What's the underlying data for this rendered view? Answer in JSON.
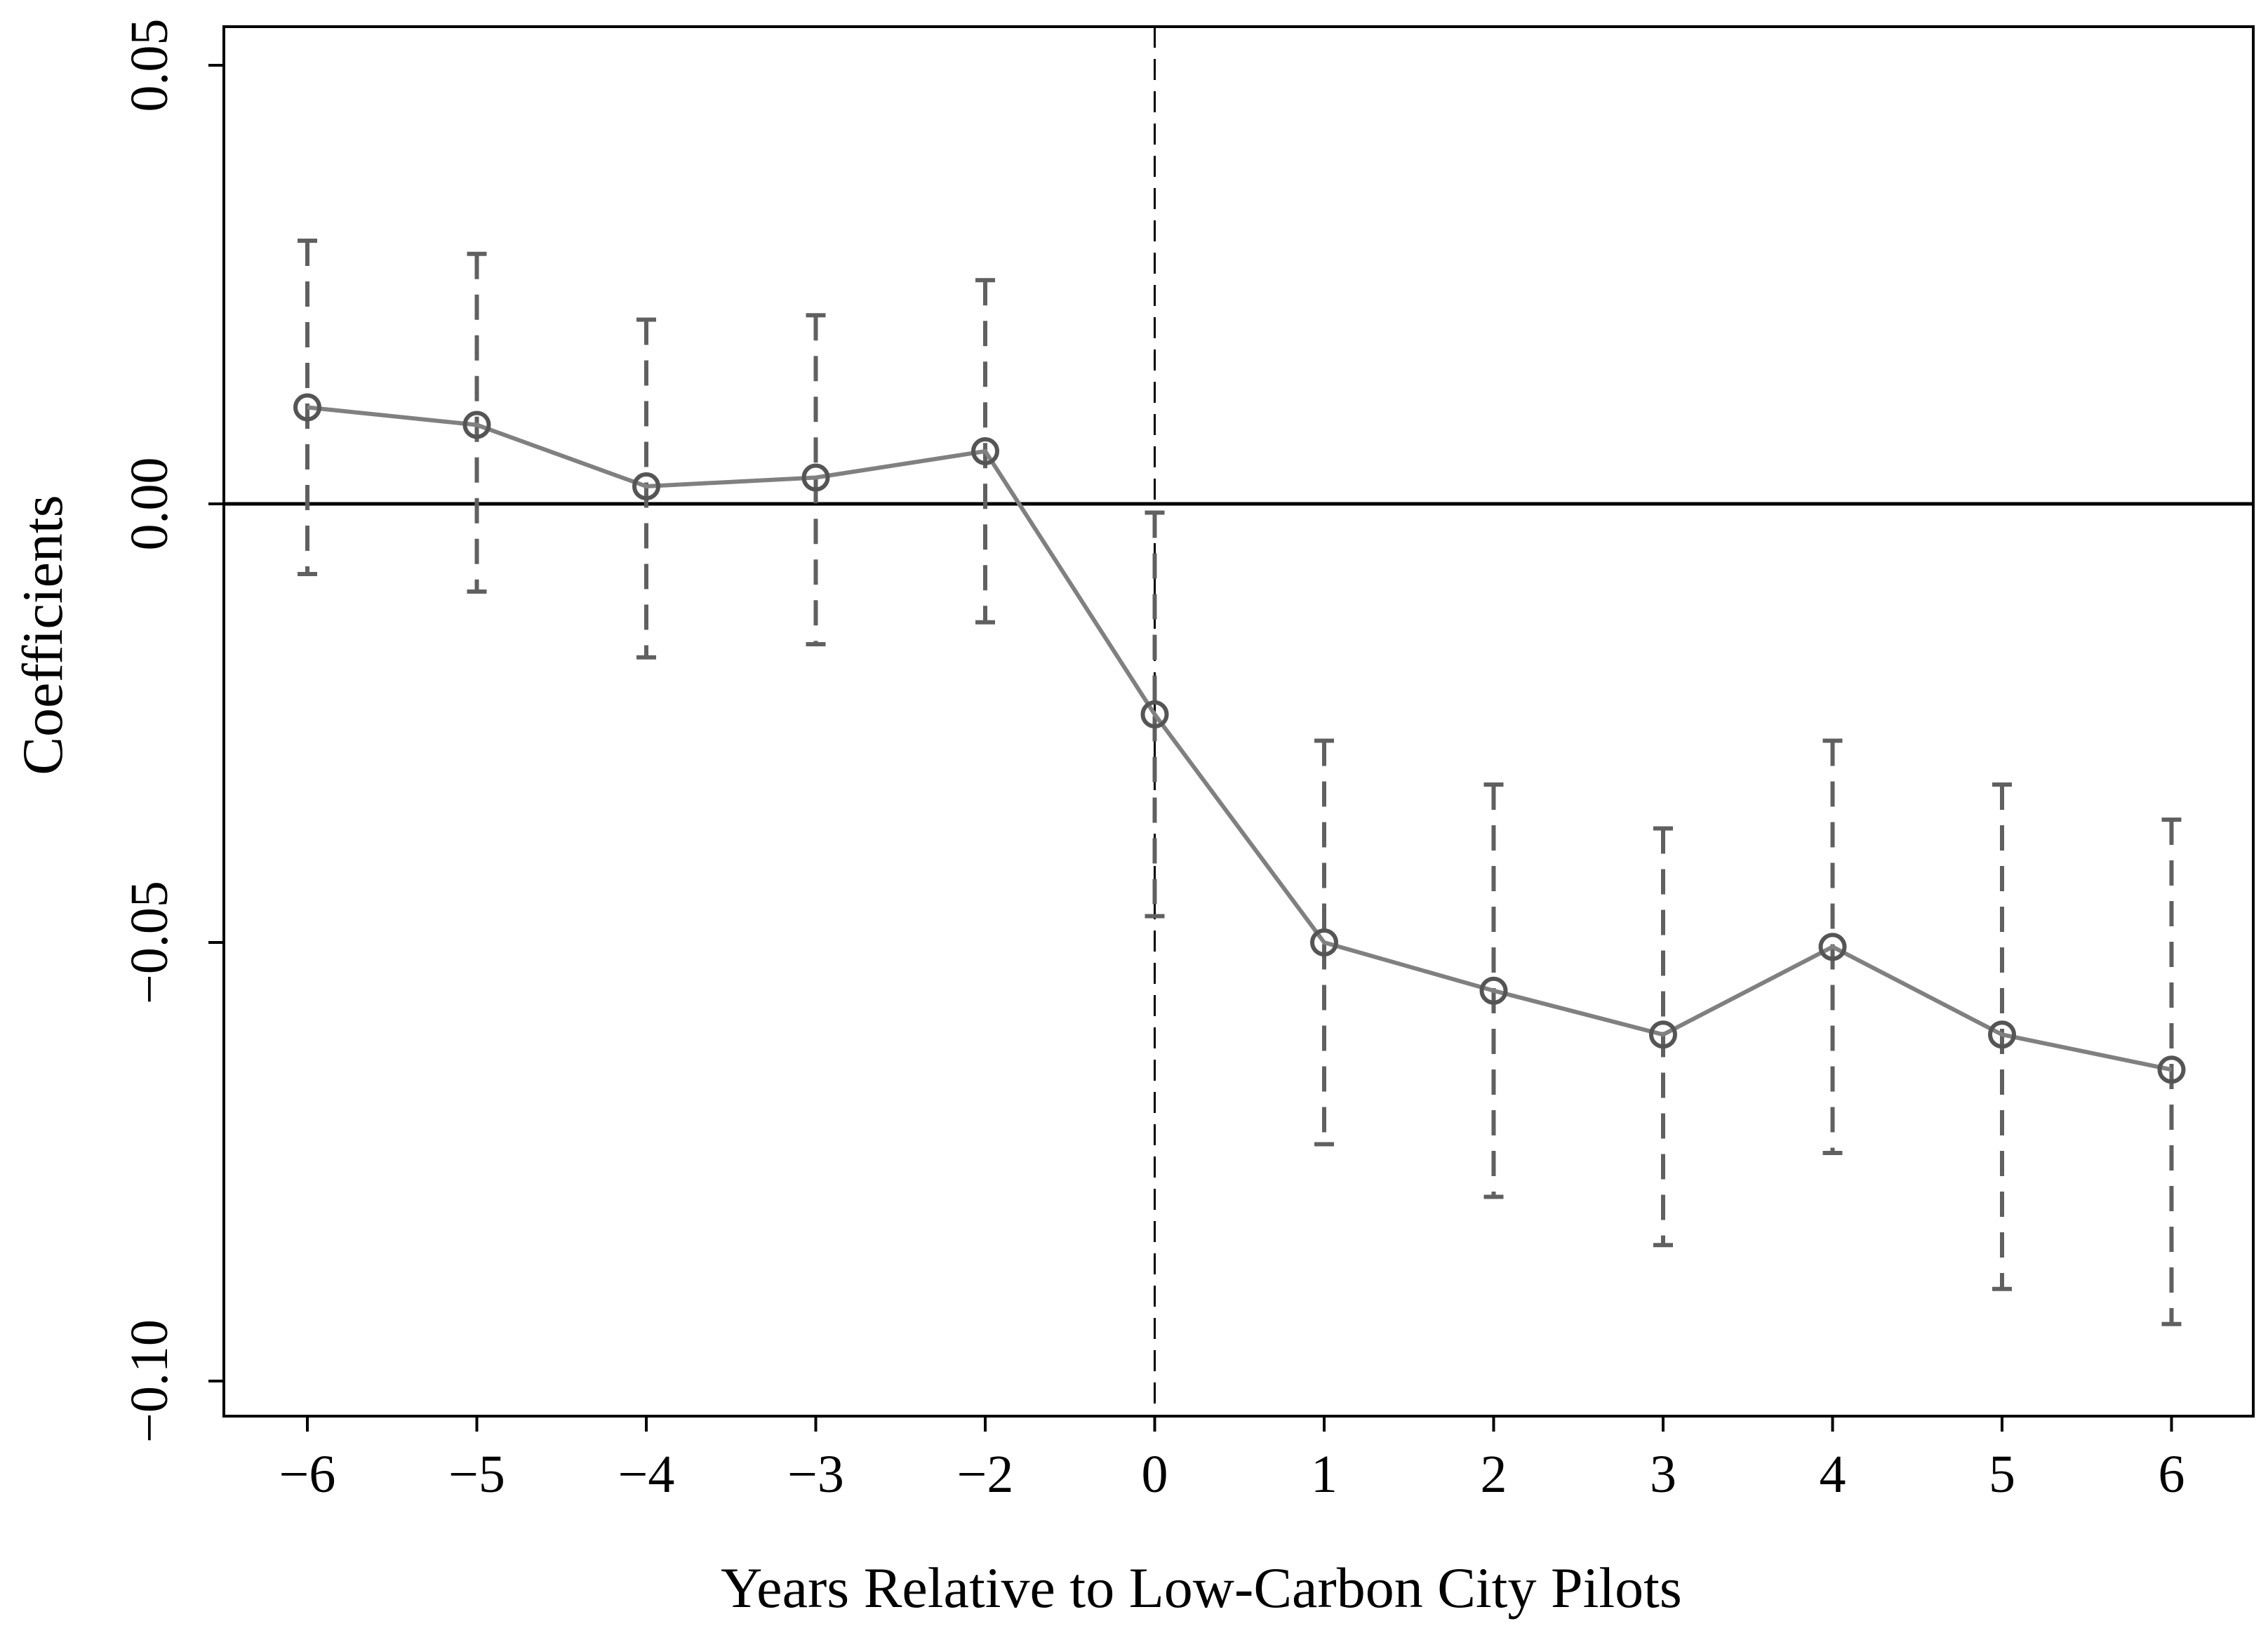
{
  "chart_data": {
    "type": "line",
    "title": "",
    "xlabel": "Years Relative to Low-Carbon City Pilots",
    "ylabel": "Coefficients",
    "x": [
      -6,
      -5,
      -4,
      -3,
      -2,
      0,
      1,
      2,
      3,
      4,
      5,
      6
    ],
    "x_tick_labels": [
      "−6",
      "−5",
      "−4",
      "−3",
      "−2",
      "0",
      "1",
      "2",
      "3",
      "4",
      "5",
      "6"
    ],
    "ylim": [
      -0.105,
      0.055
    ],
    "y_ticks": [
      0.05,
      0.0,
      -0.05,
      -0.1
    ],
    "y_tick_labels": [
      "0.05",
      "0.00",
      "−0.05",
      "−0.10"
    ],
    "reference_lines": {
      "horizontal_y": 0.0,
      "vertical_x": 0
    },
    "series": [
      {
        "name": "Coefficient",
        "values": [
          0.011,
          0.009,
          0.002,
          0.003,
          0.006,
          -0.024,
          -0.05,
          -0.0555,
          -0.0605,
          -0.0505,
          -0.0605,
          -0.0645
        ],
        "ci_lower": [
          -0.008,
          -0.01,
          -0.0175,
          -0.016,
          -0.0135,
          -0.047,
          -0.073,
          -0.079,
          -0.0845,
          -0.074,
          -0.0895,
          -0.0935
        ],
        "ci_upper": [
          0.03,
          0.0285,
          0.021,
          0.0215,
          0.0255,
          -0.001,
          -0.027,
          -0.032,
          -0.037,
          -0.027,
          -0.032,
          -0.036
        ],
        "line_color": "#808080",
        "ci_color": "#606060"
      }
    ]
  }
}
